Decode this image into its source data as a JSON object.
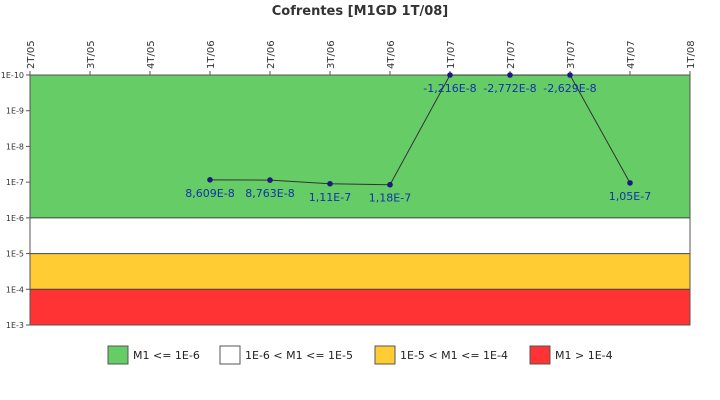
{
  "chart_data": {
    "type": "line",
    "title": "Cofrentes [M1GD 1T/08]",
    "x_categories": [
      "2T/05",
      "3T/05",
      "4T/05",
      "1T/06",
      "2T/06",
      "3T/06",
      "4T/06",
      "1T/07",
      "2T/07",
      "3T/07",
      "4T/07",
      "1T/08"
    ],
    "y_scale": "log-inverted",
    "y_ticks": [
      "1E-10",
      "1E-9",
      "1E-8",
      "1E-7",
      "1E-6",
      "1E-5",
      "1E-4",
      "1E-3"
    ],
    "ylim": [
      1e-10,
      0.001
    ],
    "series": [
      {
        "color": "#333333",
        "marker_color": "#1a1a80",
        "points": [
          {
            "x": "1T/06",
            "y": 8.609e-08,
            "label": "8,609E-8"
          },
          {
            "x": "2T/06",
            "y": 8.763e-08,
            "label": "8,763E-8"
          },
          {
            "x": "3T/06",
            "y": 1.11e-07,
            "label": "1,11E-7"
          },
          {
            "x": "4T/06",
            "y": 1.18e-07,
            "label": "1,18E-7"
          },
          {
            "x": "1T/07",
            "y": -1.216e-08,
            "label": "-1,216E-8"
          },
          {
            "x": "2T/07",
            "y": -2.772e-08,
            "label": "-2,772E-8"
          },
          {
            "x": "3T/07",
            "y": -2.629e-08,
            "label": "-2,629E-8"
          },
          {
            "x": "4T/07",
            "y": 1.05e-07,
            "label": "1,05E-7"
          }
        ]
      }
    ],
    "bands": [
      {
        "from": 1e-10,
        "to": 1e-06,
        "color": "#66cc66",
        "legend": "M1 <= 1E-6"
      },
      {
        "from": 1e-06,
        "to": 1e-05,
        "color": "#ffffff",
        "legend": "1E-6 < M1 <= 1E-5"
      },
      {
        "from": 1e-05,
        "to": 0.0001,
        "color": "#ffcc33",
        "legend": "1E-5 < M1 <= 1E-4"
      },
      {
        "from": 0.0001,
        "to": 0.001,
        "color": "#ff3333",
        "legend": "M1 > 1E-4"
      }
    ],
    "legend_position": "bottom",
    "grid": false
  }
}
